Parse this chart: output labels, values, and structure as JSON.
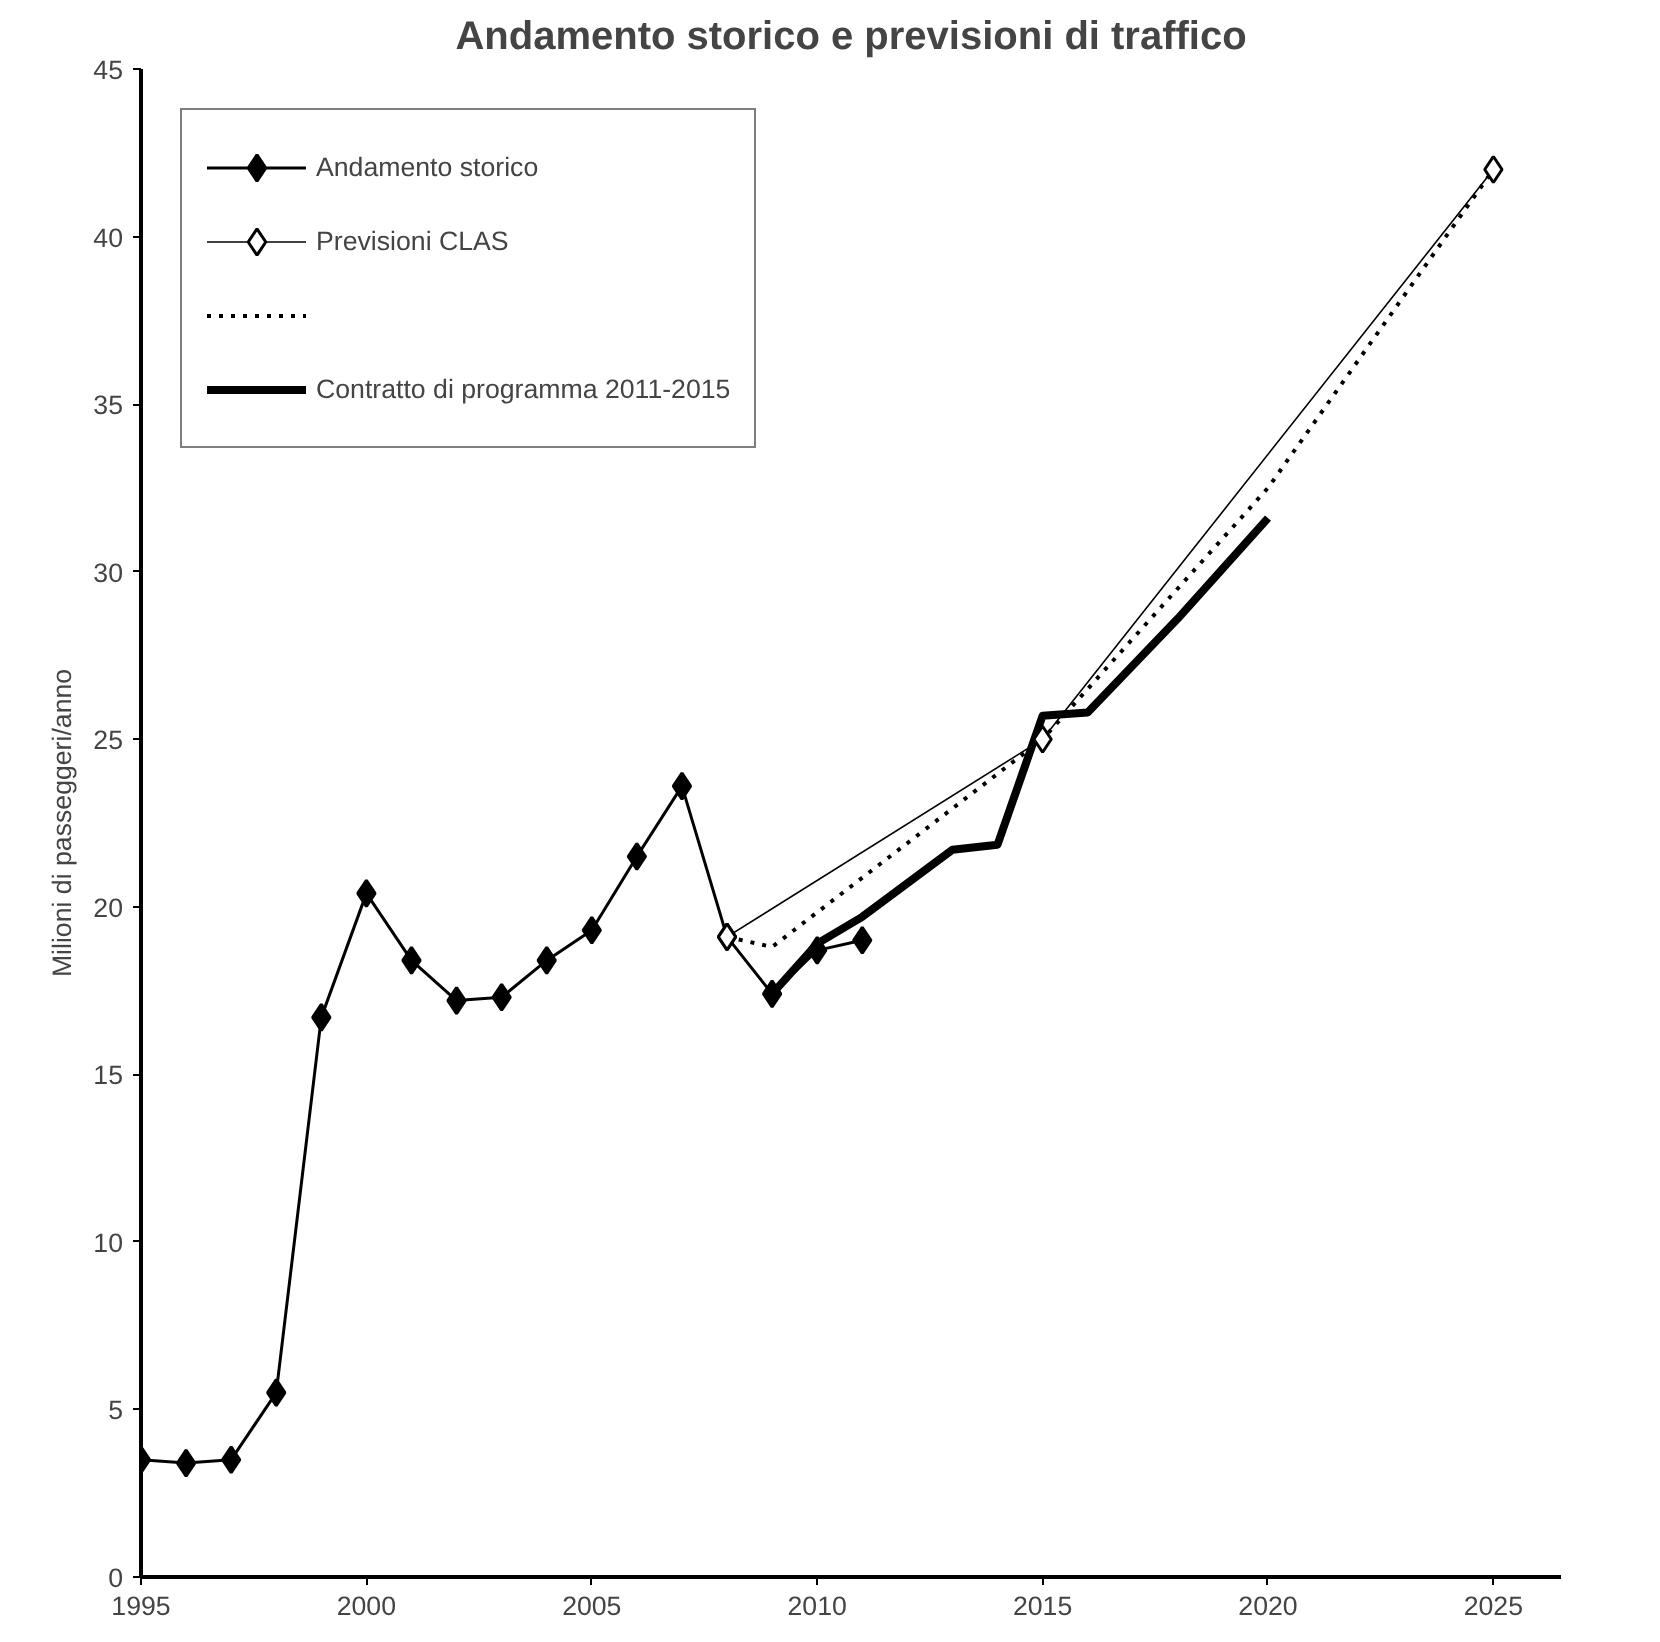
{
  "chart_data": {
    "type": "line",
    "title": "Andamento storico e previsioni di traffico",
    "ylabel": "Milioni di passeggeri/anno",
    "xlim": [
      1995,
      2026.5
    ],
    "xticks": [
      1995,
      2000,
      2005,
      2010,
      2015,
      2020,
      2025
    ],
    "ylim": [
      0,
      45
    ],
    "yticks": [
      0,
      5,
      10,
      15,
      20,
      25,
      30,
      35,
      40,
      45
    ],
    "grid": false,
    "legend": "top left",
    "series": [
      {
        "name": "Andamento storico",
        "color": "#000000",
        "marker": "diamond",
        "line_style": "solid",
        "x": [
          1995,
          1996,
          1997,
          1998,
          1999,
          2000,
          2001,
          2002,
          2003,
          2004,
          2005,
          2006,
          2007,
          2008,
          2009,
          2010,
          2011
        ],
        "values": [
          3.5,
          3.4,
          3.5,
          5.5,
          16.7,
          20.4,
          18.4,
          17.2,
          17.3,
          18.4,
          19.3,
          21.5,
          23.6,
          19.1,
          17.4,
          18.7,
          19.0
        ]
      },
      {
        "name": "Previsioni CLAS",
        "type": "line",
        "color": "#000000",
        "marker": "diamond",
        "line_style": "solid",
        "x": [
          2008,
          2015,
          2025
        ],
        "values": [
          19.1,
          25.0,
          42.0
        ]
      },
      {
        "color": "#000000",
        "marker": "none",
        "line_style": "dotted",
        "x": [
          2008,
          2009,
          2015,
          2020,
          2025
        ],
        "values": [
          19.1,
          18.8,
          25.0,
          32.5,
          42.0
        ]
      },
      {
        "name": "Contratto di programma 2011-2015",
        "color": "#000000",
        "marker": "none",
        "line_style": "solid",
        "x": [
          2009,
          2010,
          2011,
          2012,
          2013,
          2014,
          2015,
          2016,
          2017,
          2018,
          2019,
          2020
        ],
        "values": [
          17.4,
          18.9,
          19.7,
          20.7,
          21.7,
          21.85,
          25.7,
          25.8,
          27.2,
          28.6,
          30.1,
          31.6
        ]
      }
    ]
  }
}
